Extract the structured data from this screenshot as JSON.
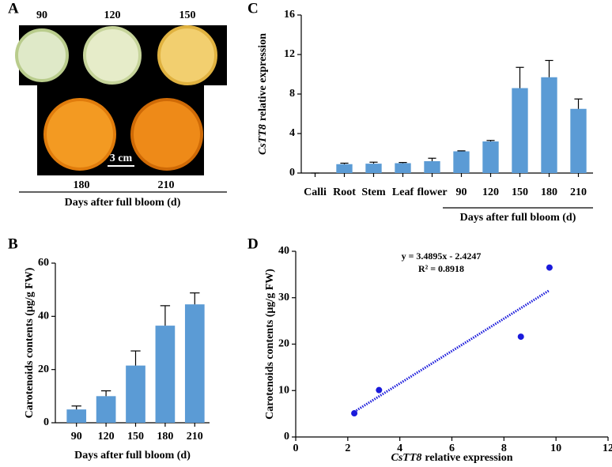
{
  "panel_a": {
    "panel": "A",
    "days": [
      "90",
      "120",
      "150",
      "180",
      "210"
    ],
    "scale": "3 cm",
    "xlabel": "Days after full bloom (d)"
  },
  "chart_data": [
    {
      "type": "bar",
      "panel": "C",
      "categories": [
        "Calli",
        "Root",
        "Stem",
        "Leaf",
        "flower",
        "90",
        "120",
        "150",
        "180",
        "210"
      ],
      "values": [
        0,
        0.9,
        0.95,
        1.0,
        1.2,
        2.2,
        3.2,
        8.6,
        9.7,
        6.5
      ],
      "errors": [
        0,
        0.1,
        0.15,
        0.07,
        0.3,
        0.05,
        0.1,
        2.1,
        1.7,
        1.0
      ],
      "color": "#5b9bd5",
      "xlabel": "Days after full bloom (d)",
      "ylabel": {
        "italic": "CsTT8",
        "text": "relative expression"
      },
      "ylim": [
        0,
        16
      ],
      "yticks": [
        0,
        4,
        8,
        12,
        16
      ]
    },
    {
      "type": "bar",
      "panel": "B",
      "categories": [
        "90",
        "120",
        "150",
        "180",
        "210"
      ],
      "values": [
        5,
        10,
        21.5,
        36.5,
        44.5
      ],
      "errors": [
        1.3,
        2,
        5.5,
        7.5,
        4.3
      ],
      "color": "#5b9bd5",
      "xlabel": "Days after full bloom (d)",
      "ylabel": {
        "text": "Carotenoids contents (μg/g FW)"
      },
      "ylim": [
        0,
        60
      ],
      "yticks": [
        0,
        20,
        40,
        60
      ]
    },
    {
      "type": "scatter",
      "panel": "D",
      "x": [
        2.25,
        3.2,
        8.65,
        9.75
      ],
      "values": [
        5.1,
        10.1,
        21.6,
        36.5
      ],
      "color": "#1a1adb",
      "trendline": {
        "slope": 3.4895,
        "intercept": -2.4247,
        "equation": "y = 3.4895x - 2.4247",
        "r2": "R² = 0.8918"
      },
      "xlabel": {
        "italic": "CsTT8",
        "text": "relative expression"
      },
      "ylabel": {
        "text": "Carotenoids contents (μg/g FW)"
      },
      "xlim": [
        0,
        12
      ],
      "xticks": [
        0,
        2,
        4,
        6,
        8,
        10,
        12
      ],
      "ylim": [
        0,
        40
      ],
      "yticks": [
        0,
        10,
        20,
        30,
        40
      ]
    }
  ]
}
